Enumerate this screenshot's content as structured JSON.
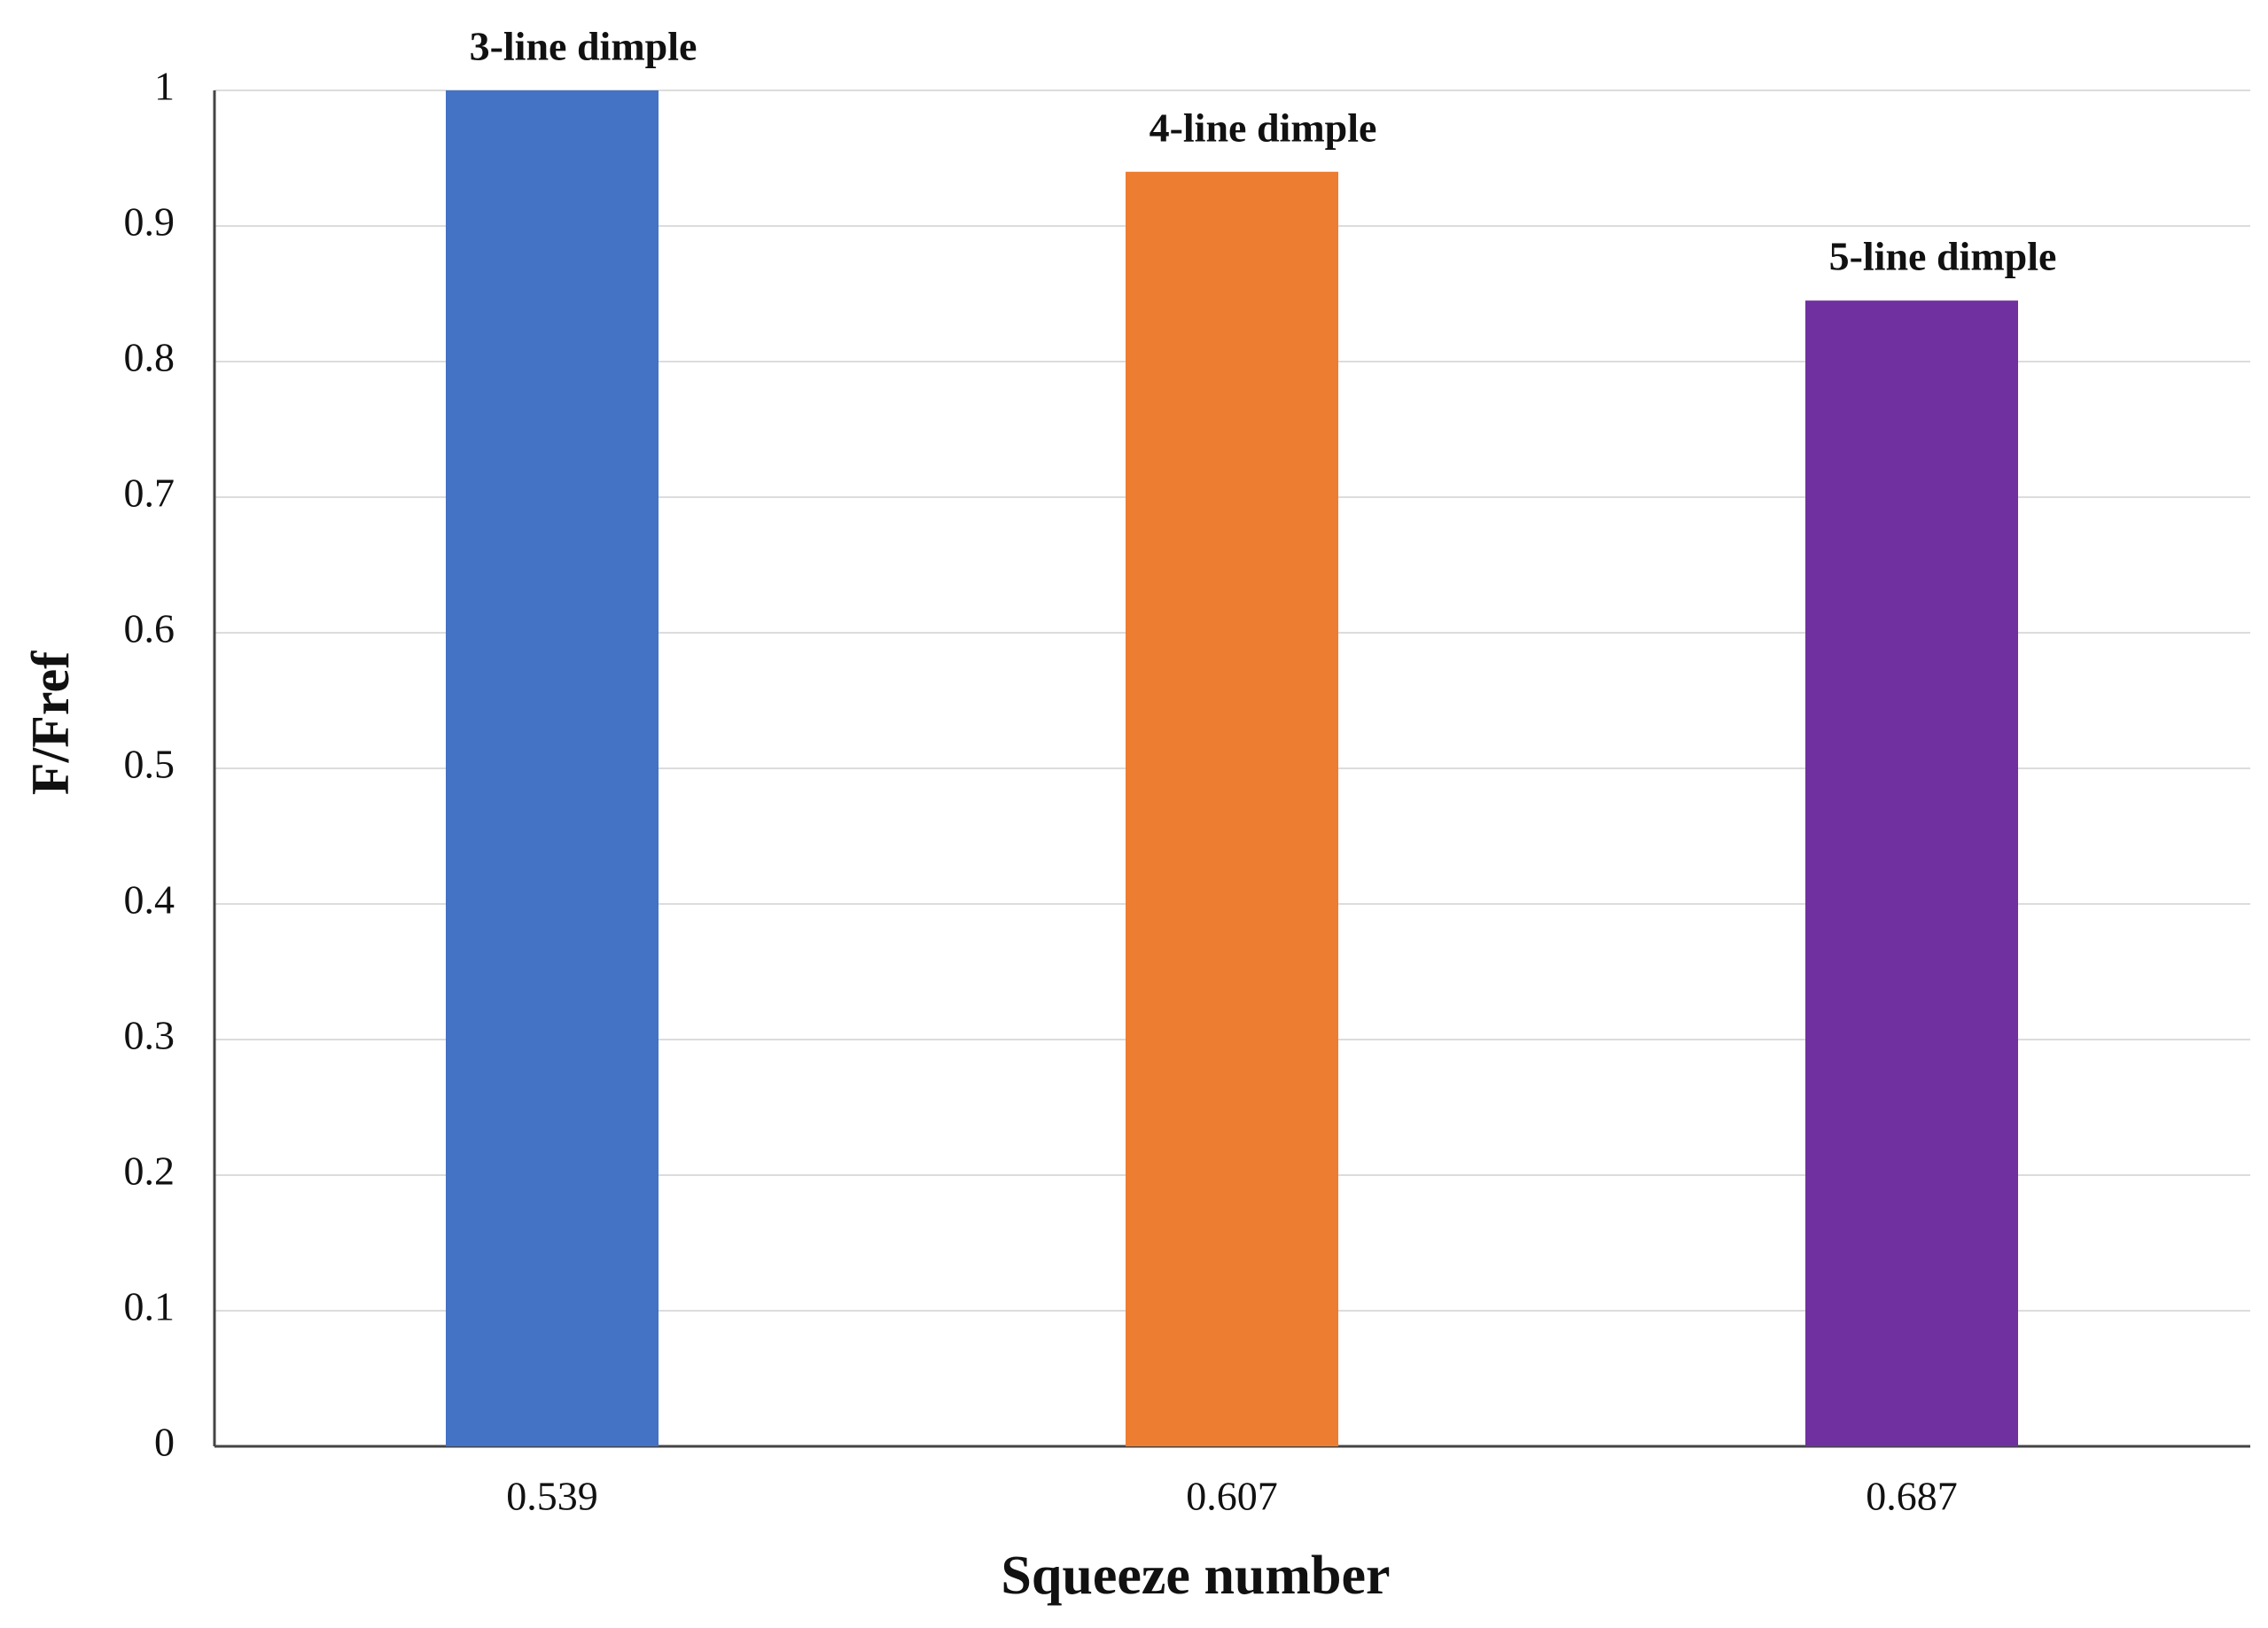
{
  "chart_data": {
    "type": "bar",
    "x_label": "Squeeze number",
    "y_label": "F/Fref",
    "categories": [
      "0.539",
      "0.607",
      "0.687"
    ],
    "values": [
      1,
      0.94,
      0.845
    ],
    "annotations": [
      "3-line dimple",
      "4-line dimple",
      "5-line dimple"
    ],
    "colors": [
      "#4472c4",
      "#ed7d31",
      "#7030a0"
    ],
    "ylim": [
      0,
      1
    ],
    "yticks": [
      0,
      0.1,
      0.2,
      0.3,
      0.4,
      0.5,
      0.6,
      0.7,
      0.8,
      0.9,
      1
    ],
    "grid": true
  }
}
